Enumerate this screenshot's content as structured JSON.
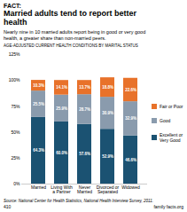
{
  "chart_data": {
    "type": "bar",
    "stacked": true,
    "title": "Married adults tend to report better\nhealth",
    "subtitle": "Nearly nine in 10 married adults report being in good or very good\nhealth, a greater share than non-married peers.",
    "annotations": [
      "FACT:",
      "AGE-ADJUSTED CURRENT HEALTH CONDITIONS BY MARITAL STATUS",
      "Source: National Center for Health Statistics, National Health Interview Survey, 2011.",
      "family facts.org",
      "410"
    ],
    "categories": [
      "Married",
      "Living With\na Partner",
      "Never\nMarried",
      "Divorced or\nSeparated",
      "Widowed"
    ],
    "series": [
      {
        "name": "Excellent or\nVery Good",
        "color": "#1b5272",
        "values": [
          64.3,
          60.0,
          57.6,
          52.9,
          46.6
        ],
        "value_labels": [
          "64.3%",
          "60.0%",
          "57.6%",
          "52.9%",
          "46.6%"
        ]
      },
      {
        "name": "Good",
        "color": "#8a9bad",
        "values": [
          25.5,
          25.9,
          28.7,
          30.9,
          32.9
        ],
        "value_labels": [
          "25.5%",
          "25.9%",
          "28.7%",
          "30.9%",
          "32.9%"
        ]
      },
      {
        "name": "Fair or Poor",
        "color": "#e8722a",
        "values": [
          10.3,
          14.1,
          13.7,
          18.8,
          22.6
        ],
        "value_labels": [
          "10.3%",
          "14.1%",
          "13.7%",
          "18.8%",
          "22.6%"
        ]
      }
    ],
    "ylim": [
      0,
      125
    ],
    "yticks": [
      {
        "value": 0,
        "label": "0%"
      },
      {
        "value": 25,
        "label": "25%"
      },
      {
        "value": 50,
        "label": "50%"
      },
      {
        "value": 75,
        "label": "75%"
      },
      {
        "value": 100,
        "label": "100%"
      },
      {
        "value": 125,
        "label": "125%"
      }
    ],
    "grid": false,
    "legend": "right",
    "data_labels": true
  }
}
